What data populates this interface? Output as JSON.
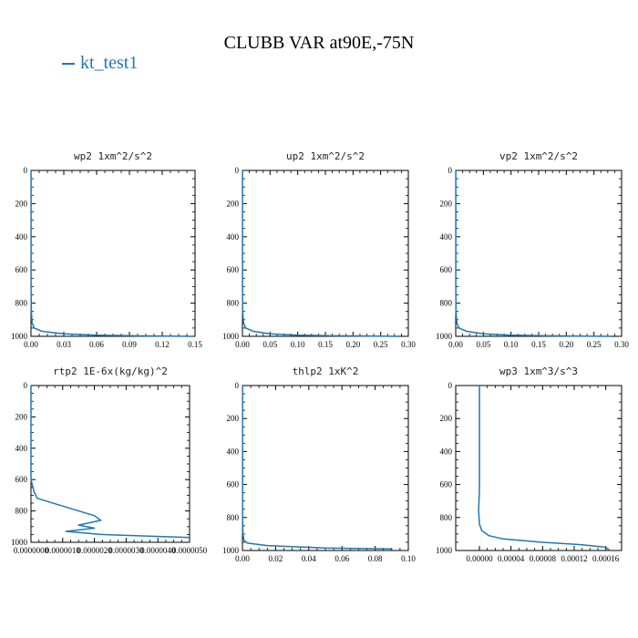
{
  "title": "CLUBB VAR at90E,-75N",
  "legend": {
    "label": "kt_test1",
    "color": "#1f77b4"
  },
  "chart_data": [
    {
      "type": "line",
      "title": "wp2  1xm^2/s^2",
      "xlim": [
        0,
        0.15
      ],
      "ylim": [
        1000,
        0
      ],
      "xticks": [
        "0.00",
        "0.03",
        "0.06",
        "0.09",
        "0.12",
        "0.15"
      ],
      "xtick_values": [
        0,
        0.03,
        0.06,
        0.09,
        0.12,
        0.15
      ],
      "yticks": [
        "0",
        "200",
        "400",
        "600",
        "800",
        "1000"
      ],
      "ytick_values": [
        0,
        200,
        400,
        600,
        800,
        1000
      ],
      "series": [
        {
          "x": [
            0.0001,
            0.0001,
            0.0003,
            0.001,
            0.003,
            0.01,
            0.03,
            0.06,
            0.1,
            0.148
          ],
          "y": [
            0,
            700,
            850,
            920,
            950,
            970,
            985,
            993,
            997,
            1000
          ]
        }
      ]
    },
    {
      "type": "line",
      "title": "up2  1xm^2/s^2",
      "xlim": [
        0,
        0.3
      ],
      "ylim": [
        1000,
        0
      ],
      "xticks": [
        "0.00",
        "0.05",
        "0.10",
        "0.15",
        "0.20",
        "0.25",
        "0.30"
      ],
      "xtick_values": [
        0,
        0.05,
        0.1,
        0.15,
        0.2,
        0.25,
        0.3
      ],
      "yticks": [
        "0",
        "200",
        "400",
        "600",
        "800",
        "1000"
      ],
      "ytick_values": [
        0,
        200,
        400,
        600,
        800,
        1000
      ],
      "series": [
        {
          "x": [
            0.0001,
            0.0001,
            0.0005,
            0.002,
            0.006,
            0.02,
            0.05,
            0.1,
            0.18,
            0.28
          ],
          "y": [
            0,
            700,
            850,
            920,
            950,
            970,
            985,
            993,
            997,
            1000
          ]
        }
      ]
    },
    {
      "type": "line",
      "title": "vp2  1xm^2/s^2",
      "xlim": [
        0,
        0.3
      ],
      "ylim": [
        1000,
        0
      ],
      "xticks": [
        "0.00",
        "0.05",
        "0.10",
        "0.15",
        "0.20",
        "0.25",
        "0.30"
      ],
      "xtick_values": [
        0,
        0.05,
        0.1,
        0.15,
        0.2,
        0.25,
        0.3
      ],
      "yticks": [
        "0",
        "200",
        "400",
        "600",
        "800",
        "1000"
      ],
      "ytick_values": [
        0,
        200,
        400,
        600,
        800,
        1000
      ],
      "series": [
        {
          "x": [
            0.0001,
            0.0001,
            0.0005,
            0.002,
            0.006,
            0.02,
            0.05,
            0.1,
            0.18,
            0.28
          ],
          "y": [
            0,
            700,
            850,
            920,
            950,
            970,
            985,
            993,
            997,
            1000
          ]
        }
      ]
    },
    {
      "type": "line",
      "title": "rtp2  1E-6x(kg/kg)^2",
      "xlim": [
        0,
        5e-06
      ],
      "ylim": [
        1000,
        0
      ],
      "xticks": [
        "0.0000000",
        "0.0000010",
        "0.0000020",
        "0.0000030",
        "0.0000040",
        "0.0000050"
      ],
      "xtick_values": [
        0,
        1e-06,
        2e-06,
        3e-06,
        4e-06,
        5e-06
      ],
      "yticks": [
        "0",
        "200",
        "400",
        "600",
        "800",
        "1000"
      ],
      "ytick_values": [
        0,
        200,
        400,
        600,
        800,
        1000
      ],
      "series": [
        {
          "x": [
            0.0,
            0.0,
            1e-07,
            2e-07,
            2e-06,
            2.2e-06,
            1.5e-06,
            2e-06,
            1.1e-06,
            2.2e-06,
            5e-06
          ],
          "y": [
            0,
            600,
            680,
            720,
            830,
            860,
            890,
            910,
            930,
            950,
            970
          ]
        }
      ]
    },
    {
      "type": "line",
      "title": "thlp2  1xK^2",
      "xlim": [
        0,
        0.1
      ],
      "ylim": [
        1000,
        0
      ],
      "xticks": [
        "0.00",
        "0.02",
        "0.04",
        "0.06",
        "0.08",
        "0.10"
      ],
      "xtick_values": [
        0,
        0.02,
        0.04,
        0.06,
        0.08,
        0.1
      ],
      "yticks": [
        "0",
        "200",
        "400",
        "600",
        "800",
        "1000"
      ],
      "ytick_values": [
        0,
        200,
        400,
        600,
        800,
        1000
      ],
      "series": [
        {
          "x": [
            0.0001,
            0.0001,
            0.0003,
            0.001,
            0.003,
            0.015,
            0.05,
            0.09
          ],
          "y": [
            0,
            800,
            900,
            940,
            955,
            970,
            985,
            990
          ]
        }
      ]
    },
    {
      "type": "line",
      "title": "wp3  1xm^3/s^3",
      "xlim": [
        -3e-05,
        0.00018
      ],
      "ylim": [
        1000,
        0
      ],
      "xticks": [
        "0.00000",
        "0.00004",
        "0.00008",
        "0.00012",
        "0.00016"
      ],
      "xtick_values": [
        0,
        4e-05,
        8e-05,
        0.00012,
        0.00016
      ],
      "yticks": [
        "0",
        "200",
        "400",
        "600",
        "800",
        "1000"
      ],
      "ytick_values": [
        0,
        200,
        400,
        600,
        800,
        1000
      ],
      "series": [
        {
          "x": [
            0.0,
            0.0,
            0.0,
            -1e-06,
            0.0,
            3e-06,
            1.2e-05,
            3e-05,
            8e-05,
            0.00013,
            0.00016,
            0.000165
          ],
          "y": [
            0,
            400,
            650,
            750,
            840,
            880,
            910,
            930,
            950,
            965,
            980,
            1000
          ]
        }
      ]
    }
  ]
}
